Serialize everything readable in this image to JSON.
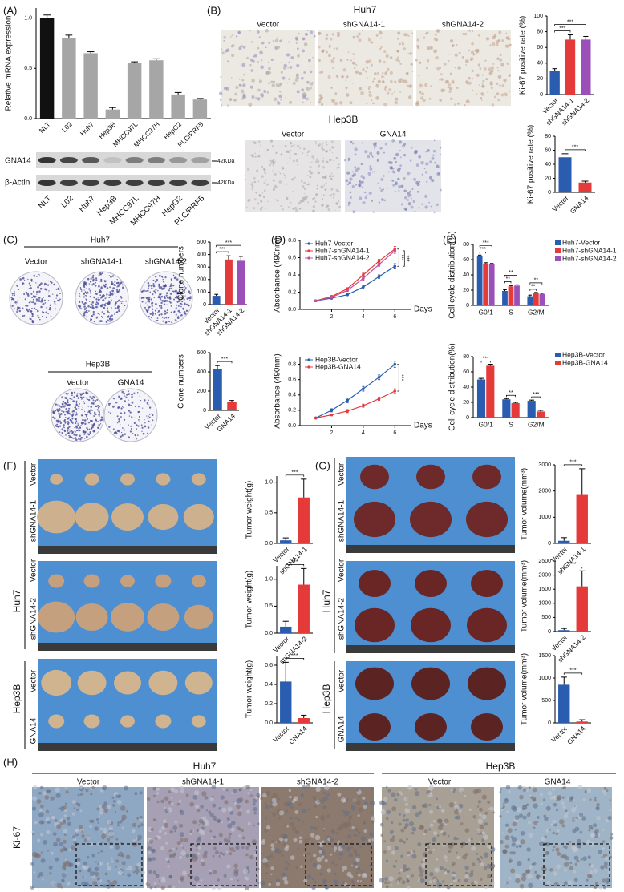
{
  "panel_labels": [
    "(A)",
    "(B)",
    "(C)",
    "(D)",
    "(E)",
    "(F)",
    "(G)",
    "(H)"
  ],
  "blot": {
    "proteins": [
      "GNA14",
      "β-Actin"
    ],
    "sizes": [
      "42KDa",
      "42KDa"
    ],
    "lanes": [
      "NLT",
      "L02",
      "Huh7",
      "Hep3B",
      "MHCC97L",
      "MHCC97H",
      "HepG2",
      "PLC/PRF5"
    ]
  },
  "panel_b": {
    "huh7": {
      "title": "Huh7",
      "groups": [
        "Vector",
        "shGNA14-1",
        "shGNA14-2"
      ]
    },
    "hep3b": {
      "title": "Hep3B",
      "groups": [
        "Vector",
        "GNA14"
      ]
    }
  },
  "panel_c": {
    "huh7": {
      "title": "Huh7",
      "groups": [
        "Vector",
        "shGNA14-1",
        "shGNA14-2"
      ]
    },
    "hep3b": {
      "title": "Hep3B",
      "groups": [
        "Vector",
        "GNA14"
      ]
    }
  },
  "panel_f": {
    "cell_lines": [
      "Huh7",
      "Hep3B"
    ],
    "rows": [
      [
        "Vector",
        "shGNA14-1"
      ],
      [
        "Vector",
        "shGNA14-2"
      ],
      [
        "Vector",
        "GNA14"
      ]
    ]
  },
  "panel_g": {
    "cell_lines": [
      "Huh7",
      "Hep3B"
    ],
    "rows": [
      [
        "Vector",
        "shGNA14-1"
      ],
      [
        "Vector",
        "shGNA14-2"
      ],
      [
        "Vector",
        "GNA14"
      ]
    ]
  },
  "panel_h": {
    "huh7": {
      "title": "Huh7",
      "groups": [
        "Vector",
        "shGNA14-1",
        "shGNA14-2"
      ]
    },
    "hep3b": {
      "title": "Hep3B",
      "groups": [
        "Vector",
        "GNA14"
      ]
    },
    "stain": "Ki-67"
  },
  "chart_data": [
    {
      "type": "bar",
      "ylabel": "Relative mRNA expression",
      "categories": [
        "NLT",
        "L02",
        "Huh7",
        "Hep3B",
        "MHCC97L",
        "MHCC97H",
        "HepG2",
        "PLC/PRF5"
      ],
      "values": [
        1.0,
        0.8,
        0.65,
        0.09,
        0.55,
        0.58,
        0.24,
        0.19
      ],
      "errors": [
        0.03,
        0.03,
        0.015,
        0.02,
        0.015,
        0.015,
        0.02,
        0.01
      ],
      "colors": [
        "#111111",
        "#a6a6a6",
        "#a6a6a6",
        "#a6a6a6",
        "#a6a6a6",
        "#a6a6a6",
        "#a6a6a6",
        "#a6a6a6"
      ],
      "ylim": [
        0,
        1.1
      ],
      "yticks": [
        {
          "value": 0,
          "label": "0.0"
        },
        0.5,
        {
          "value": 1,
          "label": "1.0"
        }
      ]
    },
    {
      "type": "bar",
      "ylabel": "Ki-67 positive rate (%)",
      "categories": [
        "Vector",
        "shGNA14-1",
        "shGNA14-2"
      ],
      "values": [
        30,
        70,
        70
      ],
      "errors": [
        3,
        6,
        4
      ],
      "colors": [
        "#2a5db0",
        "#e53a3a",
        "#9b4fb8"
      ],
      "ylim": [
        0,
        100
      ],
      "yticks": [
        0,
        20,
        40,
        60,
        80,
        100
      ],
      "annotations": [
        "***",
        "***"
      ]
    },
    {
      "type": "bar",
      "ylabel": "Ki-67 positive rate (%)",
      "categories": [
        "Vector",
        "GNA14"
      ],
      "values": [
        50,
        14
      ],
      "errors": [
        5,
        2
      ],
      "colors": [
        "#2a5db0",
        "#e53a3a"
      ],
      "ylim": [
        0,
        80
      ],
      "yticks": [
        0,
        20,
        40,
        60,
        80
      ],
      "annotations": [
        "***"
      ]
    },
    {
      "type": "bar",
      "ylabel": "Clone numbers",
      "categories": [
        "Vector",
        "shGNA14-1",
        "shGNA14-2"
      ],
      "values": [
        70,
        360,
        350
      ],
      "errors": [
        12,
        30,
        35
      ],
      "colors": [
        "#2a5db0",
        "#e53a3a",
        "#9b4fb8"
      ],
      "ylim": [
        0,
        500
      ],
      "yticks": [
        0,
        100,
        200,
        300,
        400,
        500
      ],
      "annotations": [
        "***",
        "***"
      ]
    },
    {
      "type": "bar",
      "ylabel": "Clone numbers",
      "categories": [
        "Vector",
        "GNA14"
      ],
      "values": [
        430,
        85
      ],
      "errors": [
        35,
        18
      ],
      "colors": [
        "#2a5db0",
        "#e53a3a"
      ],
      "ylim": [
        0,
        600
      ],
      "yticks": [
        0,
        200,
        400,
        600
      ],
      "annotations": [
        "***"
      ]
    },
    {
      "type": "line",
      "ylabel": "Absorbance (490nm)",
      "xlabel": "Days",
      "x": [
        1,
        2,
        3,
        4,
        5,
        6
      ],
      "xlim": [
        0,
        7
      ],
      "xticks": [
        2,
        4,
        6
      ],
      "ylim": [
        0,
        0.8
      ],
      "yticks": [
        {
          "value": 0,
          "label": "0.0"
        },
        0.2,
        0.4,
        0.6,
        0.8
      ],
      "legend": "upper left",
      "series": [
        {
          "name": "Huh7-Vector",
          "color": "#2a5db0",
          "values": [
            0.1,
            0.13,
            0.17,
            0.26,
            0.38,
            0.5
          ],
          "errors": [
            0.01,
            0.01,
            0.01,
            0.02,
            0.02,
            0.03
          ]
        },
        {
          "name": "Huh7-shGNA14-1",
          "color": "#e53a3a",
          "values": [
            0.1,
            0.15,
            0.24,
            0.4,
            0.56,
            0.7
          ],
          "errors": [
            0.01,
            0.01,
            0.01,
            0.02,
            0.02,
            0.03
          ]
        },
        {
          "name": "Huh7-shGNA14-2",
          "color": "#c0509a",
          "values": [
            0.1,
            0.14,
            0.22,
            0.36,
            0.52,
            0.68
          ],
          "errors": [
            0.01,
            0.01,
            0.01,
            0.02,
            0.02,
            0.03
          ]
        }
      ],
      "annotations": [
        "***",
        "***"
      ]
    },
    {
      "type": "line",
      "ylabel": "Absorbance (490nm)",
      "xlabel": "Days",
      "x": [
        1,
        2,
        3,
        4,
        5,
        6
      ],
      "xlim": [
        0,
        7
      ],
      "xticks": [
        2,
        4,
        6
      ],
      "ylim": [
        0,
        0.9
      ],
      "yticks": [
        {
          "value": 0,
          "label": "0.0"
        },
        0.2,
        0.4,
        0.6,
        0.8
      ],
      "legend": "upper left",
      "series": [
        {
          "name": "Hep3B-Vector",
          "color": "#2a5db0",
          "values": [
            0.1,
            0.2,
            0.33,
            0.48,
            0.63,
            0.8
          ],
          "errors": [
            0.01,
            0.02,
            0.03,
            0.03,
            0.03,
            0.04
          ]
        },
        {
          "name": "Hep3B-GNA14",
          "color": "#e53a3a",
          "values": [
            0.1,
            0.14,
            0.19,
            0.26,
            0.35,
            0.45
          ],
          "errors": [
            0.01,
            0.01,
            0.02,
            0.02,
            0.02,
            0.03
          ]
        }
      ],
      "annotations": [
        "***"
      ]
    },
    {
      "type": "grouped_bar",
      "ylabel": "Cell cycle distribution(%)",
      "categories": [
        "G0/1",
        "S",
        "G2/M"
      ],
      "ylim": [
        0,
        80
      ],
      "yticks": [
        0,
        20,
        40,
        60,
        80
      ],
      "legend": "right",
      "series": [
        {
          "name": "Huh7-Vector",
          "color": "#2a5db0",
          "values": [
            65,
            19,
            12
          ],
          "errors": [
            1,
            1.5,
            1.5
          ]
        },
        {
          "name": "Huh7-shGNA14-1",
          "color": "#e53a3a",
          "values": [
            55,
            25,
            16
          ],
          "errors": [
            1,
            1,
            1
          ]
        },
        {
          "name": "Huh7-shGNA14-2",
          "color": "#9b4fb8",
          "values": [
            54,
            26,
            15
          ],
          "errors": [
            1,
            1,
            1
          ]
        }
      ],
      "annotations": [
        "***",
        "***",
        "**",
        "**",
        "**",
        "**"
      ]
    },
    {
      "type": "grouped_bar",
      "ylabel": "Cell cycle distribution(%)",
      "categories": [
        "G0/1",
        "S",
        "G2/M"
      ],
      "ylim": [
        0,
        80
      ],
      "yticks": [
        0,
        20,
        40,
        60,
        80
      ],
      "legend": "right",
      "series": [
        {
          "name": "Hep3B-Vector",
          "color": "#2a5db0",
          "values": [
            50,
            24,
            22
          ],
          "errors": [
            1.5,
            1,
            1
          ]
        },
        {
          "name": "Hep3B-GNA14",
          "color": "#e53a3a",
          "values": [
            68,
            19,
            8
          ],
          "errors": [
            2,
            1,
            1.5
          ]
        }
      ],
      "annotations": [
        "***",
        "**",
        "***"
      ]
    },
    {
      "type": "bar",
      "ylabel": "Tumor weight(g)",
      "categories": [
        "Vector",
        "shGNA14-1"
      ],
      "values": [
        0.05,
        0.75
      ],
      "errors": [
        0.04,
        0.3
      ],
      "colors": [
        "#2a5db0",
        "#e53a3a"
      ],
      "ylim": [
        0,
        1.1
      ],
      "yticks": [
        {
          "value": 0,
          "label": "0.0"
        },
        0.5,
        {
          "value": 1,
          "label": "1.0"
        }
      ],
      "annotations": [
        "***"
      ]
    },
    {
      "type": "bar",
      "ylabel": "Tumor weight(g)",
      "categories": [
        "Vector",
        "shGNA14-2"
      ],
      "values": [
        0.12,
        0.9
      ],
      "errors": [
        0.1,
        0.3
      ],
      "colors": [
        "#2a5db0",
        "#e53a3a"
      ],
      "ylim": [
        0,
        1.25
      ],
      "yticks": [
        {
          "value": 0,
          "label": "0.0"
        },
        0.5,
        {
          "value": 1,
          "label": "1.0"
        }
      ],
      "annotations": [
        "***"
      ]
    },
    {
      "type": "bar",
      "ylabel": "Tumor weight(g)",
      "categories": [
        "Vector",
        "GNA14"
      ],
      "values": [
        0.43,
        0.05
      ],
      "errors": [
        0.2,
        0.03
      ],
      "colors": [
        "#2a5db0",
        "#e53a3a"
      ],
      "ylim": [
        0,
        0.7
      ],
      "yticks": [
        {
          "value": 0,
          "label": "0.0"
        },
        0.2,
        0.4,
        0.6
      ],
      "annotations": [
        "***"
      ]
    },
    {
      "type": "bar",
      "ylabel": "Tumor volume(mm³)",
      "categories": [
        "Vector",
        "shGNA14-1"
      ],
      "values": [
        100,
        1850
      ],
      "errors": [
        120,
        1000
      ],
      "colors": [
        "#2a5db0",
        "#e53a3a"
      ],
      "ylim": [
        0,
        3000
      ],
      "yticks": [
        0,
        1000,
        2000,
        3000
      ],
      "annotations": [
        "***"
      ]
    },
    {
      "type": "bar",
      "ylabel": "Tumor volume(mm³)",
      "categories": [
        "Vector",
        "shGNA14-2"
      ],
      "values": [
        50,
        1600
      ],
      "errors": [
        60,
        550
      ],
      "colors": [
        "#2a5db0",
        "#e53a3a"
      ],
      "ylim": [
        0,
        2500
      ],
      "yticks": [
        0,
        500,
        1000,
        1500,
        2000,
        2500
      ],
      "annotations": [
        "***"
      ]
    },
    {
      "type": "bar",
      "ylabel": "Tumor volume(mm³)",
      "categories": [
        "Vector",
        "GNA14"
      ],
      "values": [
        850,
        30
      ],
      "errors": [
        170,
        40
      ],
      "colors": [
        "#2a5db0",
        "#e53a3a"
      ],
      "ylim": [
        0,
        1500
      ],
      "yticks": [
        0,
        500,
        1000,
        1500
      ],
      "annotations": [
        "***"
      ]
    }
  ]
}
